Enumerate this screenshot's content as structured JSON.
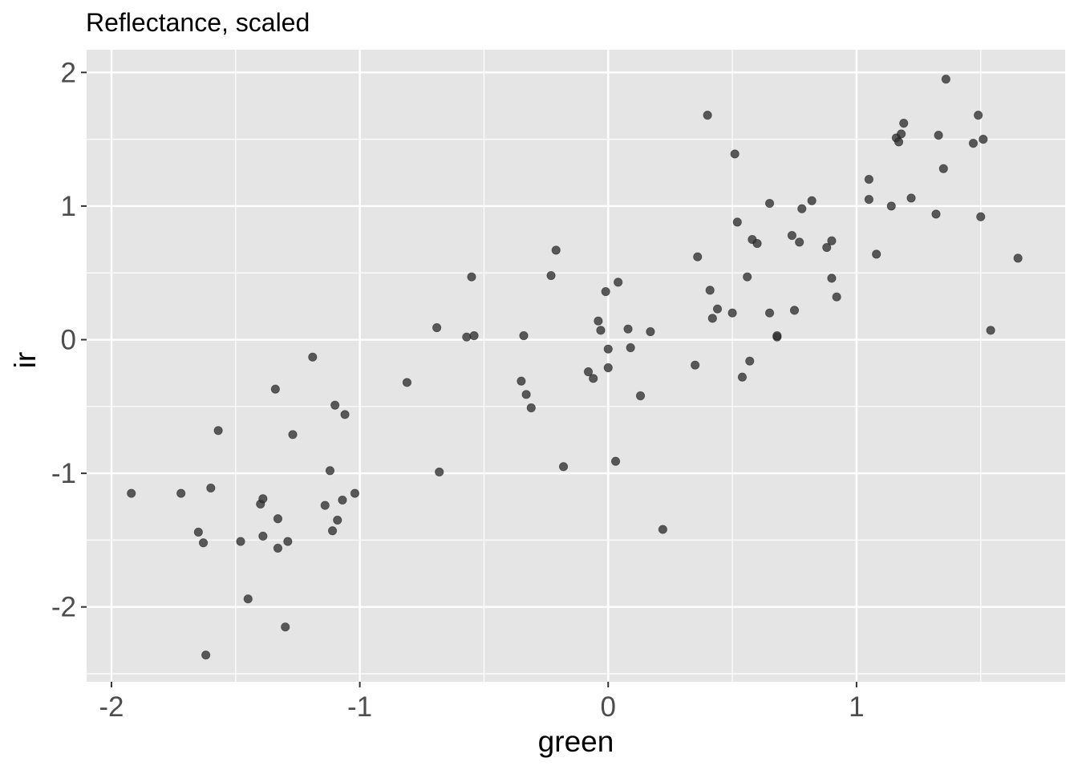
{
  "chart_data": {
    "type": "scatter",
    "title": "Reflectance, scaled",
    "xlabel": "green",
    "ylabel": "ir",
    "xlim": [
      -2.1,
      1.84
    ],
    "ylim": [
      -2.56,
      2.17
    ],
    "x_ticks": [
      -2,
      -1,
      0,
      1
    ],
    "x_tick_labels": [
      "-2",
      "-1",
      "0",
      "1"
    ],
    "y_ticks": [
      -2,
      -1,
      0,
      1,
      2
    ],
    "y_tick_labels": [
      "-2",
      "-1",
      "0",
      "1",
      "2"
    ],
    "grid": true,
    "legend": "none",
    "colors": {
      "panel": "#e5e5e5",
      "grid": "#ffffff",
      "point": "#333333",
      "tick": "#4d4d4d"
    },
    "points": [
      {
        "x": -1.92,
        "y": -1.15
      },
      {
        "x": -1.72,
        "y": -1.15
      },
      {
        "x": -1.65,
        "y": -1.44
      },
      {
        "x": -1.63,
        "y": -1.52
      },
      {
        "x": -1.62,
        "y": -2.36
      },
      {
        "x": -1.6,
        "y": -1.11
      },
      {
        "x": -1.57,
        "y": -0.68
      },
      {
        "x": -1.48,
        "y": -1.51
      },
      {
        "x": -1.45,
        "y": -1.94
      },
      {
        "x": -1.4,
        "y": -1.23
      },
      {
        "x": -1.39,
        "y": -1.19
      },
      {
        "x": -1.39,
        "y": -1.47
      },
      {
        "x": -1.34,
        "y": -0.37
      },
      {
        "x": -1.33,
        "y": -1.34
      },
      {
        "x": -1.33,
        "y": -1.56
      },
      {
        "x": -1.3,
        "y": -2.15
      },
      {
        "x": -1.29,
        "y": -1.51
      },
      {
        "x": -1.27,
        "y": -0.71
      },
      {
        "x": -1.19,
        "y": -0.13
      },
      {
        "x": -1.14,
        "y": -1.24
      },
      {
        "x": -1.12,
        "y": -0.98
      },
      {
        "x": -1.11,
        "y": -1.43
      },
      {
        "x": -1.1,
        "y": -0.49
      },
      {
        "x": -1.09,
        "y": -1.35
      },
      {
        "x": -1.07,
        "y": -1.2
      },
      {
        "x": -1.06,
        "y": -0.56
      },
      {
        "x": -1.02,
        "y": -1.15
      },
      {
        "x": -0.81,
        "y": -0.32
      },
      {
        "x": -0.69,
        "y": 0.09
      },
      {
        "x": -0.68,
        "y": -0.99
      },
      {
        "x": -0.57,
        "y": 0.02
      },
      {
        "x": -0.55,
        "y": 0.47
      },
      {
        "x": -0.54,
        "y": 0.03
      },
      {
        "x": -0.35,
        "y": -0.31
      },
      {
        "x": -0.34,
        "y": 0.03
      },
      {
        "x": -0.33,
        "y": -0.41
      },
      {
        "x": -0.31,
        "y": -0.51
      },
      {
        "x": -0.23,
        "y": 0.48
      },
      {
        "x": -0.21,
        "y": 0.67
      },
      {
        "x": -0.18,
        "y": -0.95
      },
      {
        "x": -0.08,
        "y": -0.24
      },
      {
        "x": -0.06,
        "y": -0.29
      },
      {
        "x": -0.04,
        "y": 0.14
      },
      {
        "x": -0.03,
        "y": 0.07
      },
      {
        "x": -0.01,
        "y": 0.36
      },
      {
        "x": 0.0,
        "y": -0.07
      },
      {
        "x": 0.0,
        "y": -0.21
      },
      {
        "x": 0.03,
        "y": -0.91
      },
      {
        "x": 0.04,
        "y": 0.43
      },
      {
        "x": 0.08,
        "y": 0.08
      },
      {
        "x": 0.09,
        "y": -0.06
      },
      {
        "x": 0.13,
        "y": -0.42
      },
      {
        "x": 0.17,
        "y": 0.06
      },
      {
        "x": 0.22,
        "y": -1.42
      },
      {
        "x": 0.35,
        "y": -0.19
      },
      {
        "x": 0.36,
        "y": 0.62
      },
      {
        "x": 0.4,
        "y": 1.68
      },
      {
        "x": 0.41,
        "y": 0.37
      },
      {
        "x": 0.42,
        "y": 0.16
      },
      {
        "x": 0.44,
        "y": 0.23
      },
      {
        "x": 0.5,
        "y": 0.2
      },
      {
        "x": 0.51,
        "y": 1.39
      },
      {
        "x": 0.52,
        "y": 0.88
      },
      {
        "x": 0.54,
        "y": -0.28
      },
      {
        "x": 0.56,
        "y": 0.47
      },
      {
        "x": 0.57,
        "y": -0.16
      },
      {
        "x": 0.58,
        "y": 0.75
      },
      {
        "x": 0.6,
        "y": 0.72
      },
      {
        "x": 0.65,
        "y": 0.2
      },
      {
        "x": 0.65,
        "y": 1.02
      },
      {
        "x": 0.68,
        "y": 0.02
      },
      {
        "x": 0.68,
        "y": 0.03
      },
      {
        "x": 0.74,
        "y": 0.78
      },
      {
        "x": 0.75,
        "y": 0.22
      },
      {
        "x": 0.77,
        "y": 0.73
      },
      {
        "x": 0.78,
        "y": 0.98
      },
      {
        "x": 0.82,
        "y": 1.04
      },
      {
        "x": 0.88,
        "y": 0.69
      },
      {
        "x": 0.9,
        "y": 0.74
      },
      {
        "x": 0.9,
        "y": 0.46
      },
      {
        "x": 0.92,
        "y": 0.32
      },
      {
        "x": 1.05,
        "y": 1.05
      },
      {
        "x": 1.05,
        "y": 1.2
      },
      {
        "x": 1.08,
        "y": 0.64
      },
      {
        "x": 1.14,
        "y": 1.0
      },
      {
        "x": 1.16,
        "y": 1.51
      },
      {
        "x": 1.17,
        "y": 1.48
      },
      {
        "x": 1.18,
        "y": 1.54
      },
      {
        "x": 1.19,
        "y": 1.62
      },
      {
        "x": 1.22,
        "y": 1.06
      },
      {
        "x": 1.32,
        "y": 0.94
      },
      {
        "x": 1.33,
        "y": 1.53
      },
      {
        "x": 1.35,
        "y": 1.28
      },
      {
        "x": 1.36,
        "y": 1.95
      },
      {
        "x": 1.47,
        "y": 1.47
      },
      {
        "x": 1.49,
        "y": 1.68
      },
      {
        "x": 1.5,
        "y": 0.92
      },
      {
        "x": 1.51,
        "y": 1.5
      },
      {
        "x": 1.54,
        "y": 0.07
      },
      {
        "x": 1.65,
        "y": 0.61
      }
    ]
  }
}
